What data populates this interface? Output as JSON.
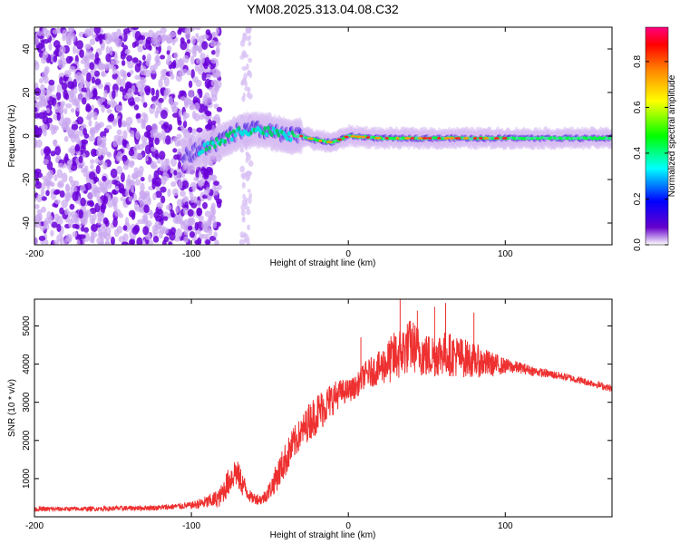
{
  "figure": {
    "title": "YM08.2025.313.04.08.C32"
  },
  "chart_data": [
    {
      "type": "heatmap",
      "title": "YM08.2025.313.04.08.C32",
      "xlabel": "Height of straight line (km)",
      "ylabel": "Frequency (Hz)",
      "xlim": [
        -200,
        168
      ],
      "ylim": [
        -50,
        50
      ],
      "xticks": [
        -200,
        -100,
        0,
        100
      ],
      "yticks": [
        -40,
        -20,
        0,
        20,
        40
      ],
      "colorbar": {
        "label": "Normalized spectral amplitude",
        "range": [
          0,
          0.95
        ],
        "ticks": [
          0.0,
          0.2,
          0.4,
          0.6,
          0.8
        ],
        "colormap": [
          "#ffffff",
          "#6600cc",
          "#0000ff",
          "#00ffff",
          "#00ff00",
          "#ffff00",
          "#ff8800",
          "#ff0000",
          "#ff0080"
        ]
      },
      "ridge": {
        "x": [
          -100,
          -90,
          -80,
          -70,
          -60,
          -50,
          -40,
          -30,
          -20,
          -10,
          0,
          20,
          40,
          60,
          80,
          100,
          120,
          140,
          168
        ],
        "frequency": [
          -8,
          -5,
          -2,
          2,
          3,
          2,
          0,
          0,
          -2,
          -3,
          0,
          -1,
          -1,
          -1,
          -1,
          -1,
          -1,
          -1,
          -1
        ]
      },
      "noise_region": {
        "x_from": -200,
        "x_to": -90
      }
    },
    {
      "type": "line",
      "xlabel": "Height of straight line (km)",
      "ylabel": "SNR (10 * v/v)",
      "xlim": [
        -200,
        168
      ],
      "ylim": [
        0,
        5700
      ],
      "xticks": [
        -200,
        -100,
        0,
        100
      ],
      "yticks": [
        1000,
        2000,
        3000,
        4000,
        5000
      ],
      "series": [
        {
          "name": "SNR",
          "color": "#ee3030",
          "x": [
            -200,
            -160,
            -120,
            -100,
            -90,
            -82,
            -78,
            -72,
            -68,
            -62,
            -55,
            -50,
            -45,
            -40,
            -35,
            -30,
            -25,
            -20,
            -15,
            -10,
            -5,
            0,
            5,
            10,
            20,
            30,
            40,
            50,
            60,
            70,
            80,
            90,
            100,
            110,
            120,
            140,
            160,
            168
          ],
          "values": [
            200,
            210,
            240,
            300,
            380,
            500,
            800,
            1200,
            900,
            500,
            450,
            700,
            1100,
            1500,
            1900,
            2200,
            2500,
            2700,
            2900,
            3100,
            3250,
            3300,
            3400,
            3700,
            3900,
            4200,
            4500,
            4200,
            4300,
            4200,
            4100,
            4000,
            3950,
            3900,
            3800,
            3650,
            3450,
            3350
          ],
          "noise_amplitude": [
            60,
            60,
            70,
            90,
            180,
            250,
            350,
            400,
            350,
            150,
            150,
            250,
            400,
            450,
            450,
            400,
            500,
            550,
            500,
            450,
            350,
            300,
            300,
            350,
            450,
            700,
            700,
            600,
            600,
            550,
            450,
            350,
            200,
            150,
            120,
            100,
            90,
            90
          ],
          "spikes": [
            {
              "x": 33,
              "y": 5700
            },
            {
              "x": 44,
              "y": 5400
            },
            {
              "x": 55,
              "y": 5500
            },
            {
              "x": 62,
              "y": 5600
            },
            {
              "x": 80,
              "y": 5350
            },
            {
              "x": 8,
              "y": 4700
            }
          ]
        }
      ]
    }
  ]
}
